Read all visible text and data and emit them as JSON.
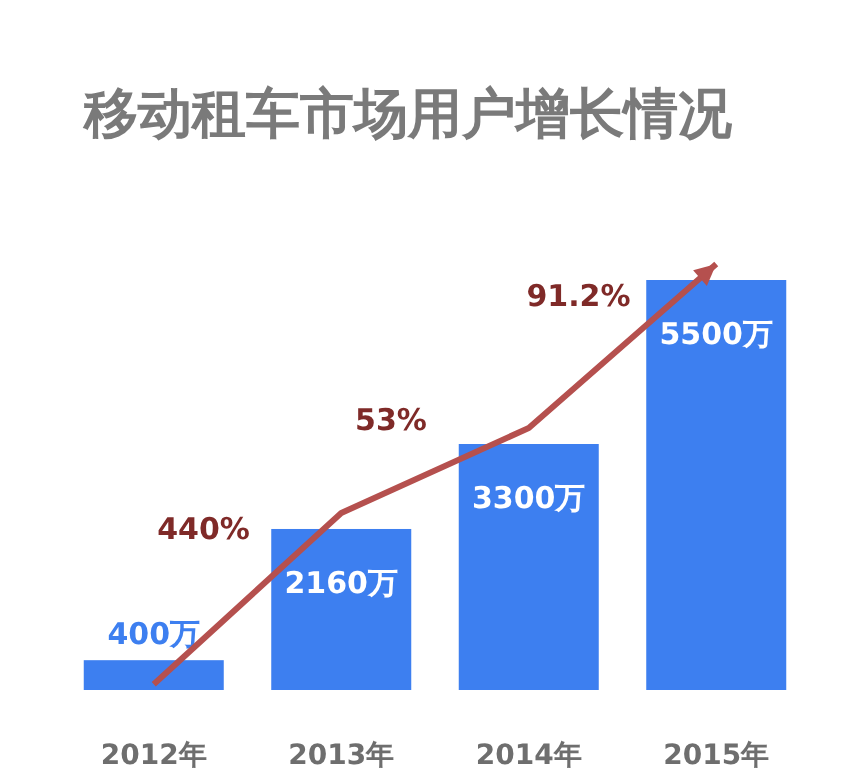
{
  "chart_data": {
    "type": "bar",
    "relative": false,
    "title": "移动租车市场用户增长情况",
    "categories": [
      "2012年",
      "2013年",
      "2014年",
      "2015年"
    ],
    "values": [
      400,
      2160,
      3300,
      5500
    ],
    "color": "#3d7ff0",
    "value_labels": [
      "400万",
      "2160万",
      "3300万",
      "5500万"
    ],
    "annotations": [
      "440%",
      "53%",
      "91.2%"
    ]
  }
}
